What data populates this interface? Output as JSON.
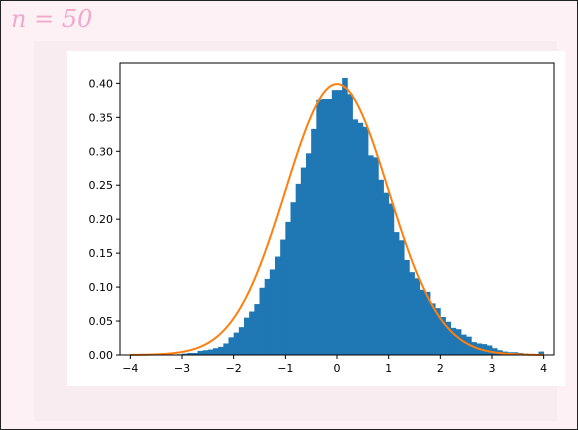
{
  "cell_label": "n = 50",
  "colors": {
    "page_bg": "#fdf1f5",
    "bars": "#1f77b4",
    "curve": "#ff7f0e",
    "label": "#f2a8c9"
  },
  "chart_data": {
    "type": "bar",
    "title": "",
    "xlabel": "",
    "ylabel": "",
    "xlim": [
      -4.2,
      4.2
    ],
    "ylim": [
      0,
      0.43
    ],
    "grid": false,
    "x_ticks": [
      -4,
      -3,
      -2,
      -1,
      0,
      1,
      2,
      3,
      4
    ],
    "x_tick_labels": [
      "−4",
      "−3",
      "−2",
      "−1",
      "0",
      "1",
      "2",
      "3",
      "4"
    ],
    "y_ticks": [
      0,
      0.05,
      0.1,
      0.15,
      0.2,
      0.25,
      0.3,
      0.35,
      0.4
    ],
    "y_tick_labels": [
      "0.00",
      "0.05",
      "0.10",
      "0.15",
      "0.20",
      "0.25",
      "0.30",
      "0.35",
      "0.40"
    ],
    "bin_edges": [
      -4.0,
      -3.9,
      -3.8,
      -3.7,
      -3.6,
      -3.5,
      -3.4,
      -3.3,
      -3.2,
      -3.1,
      -3.0,
      -2.9,
      -2.8,
      -2.7,
      -2.6,
      -2.5,
      -2.4,
      -2.3,
      -2.2,
      -2.1,
      -2.0,
      -1.9,
      -1.8,
      -1.7,
      -1.6,
      -1.5,
      -1.4,
      -1.3,
      -1.2,
      -1.1,
      -1.0,
      -0.9,
      -0.8,
      -0.7,
      -0.6,
      -0.5,
      -0.4,
      -0.3,
      -0.2,
      -0.1,
      0.0,
      0.1,
      0.2,
      0.3,
      0.4,
      0.5,
      0.6,
      0.7,
      0.8,
      0.9,
      1.0,
      1.1,
      1.2,
      1.3,
      1.4,
      1.5,
      1.6,
      1.7,
      1.8,
      1.9,
      2.0,
      2.1,
      2.2,
      2.3,
      2.4,
      2.5,
      2.6,
      2.7,
      2.8,
      2.9,
      3.0,
      3.1,
      3.2,
      3.3,
      3.4,
      3.5,
      3.6,
      3.7,
      3.8,
      3.9,
      4.0
    ],
    "values": [
      0.001,
      0.0,
      0.0,
      0.0,
      0.0,
      0.0,
      0.0,
      0.0,
      0.0,
      0.001,
      0.002,
      0.003,
      0.003,
      0.006,
      0.007,
      0.008,
      0.01,
      0.012,
      0.017,
      0.026,
      0.033,
      0.041,
      0.055,
      0.064,
      0.075,
      0.099,
      0.112,
      0.126,
      0.145,
      0.17,
      0.196,
      0.225,
      0.252,
      0.276,
      0.297,
      0.333,
      0.376,
      0.377,
      0.377,
      0.39,
      0.39,
      0.408,
      0.384,
      0.347,
      0.342,
      0.336,
      0.294,
      0.291,
      0.258,
      0.239,
      0.223,
      0.181,
      0.169,
      0.14,
      0.122,
      0.113,
      0.096,
      0.093,
      0.076,
      0.069,
      0.056,
      0.049,
      0.04,
      0.038,
      0.03,
      0.027,
      0.019,
      0.017,
      0.016,
      0.014,
      0.01,
      0.007,
      0.005,
      0.004,
      0.004,
      0.003,
      0.002,
      0.001,
      0.001,
      0.005
    ],
    "series": [
      {
        "type": "histogram",
        "color": "#1f77b4"
      },
      {
        "type": "line",
        "function": "standard-normal-pdf",
        "color": "#ff7f0e",
        "x_range": [
          -4,
          4
        ]
      }
    ]
  }
}
